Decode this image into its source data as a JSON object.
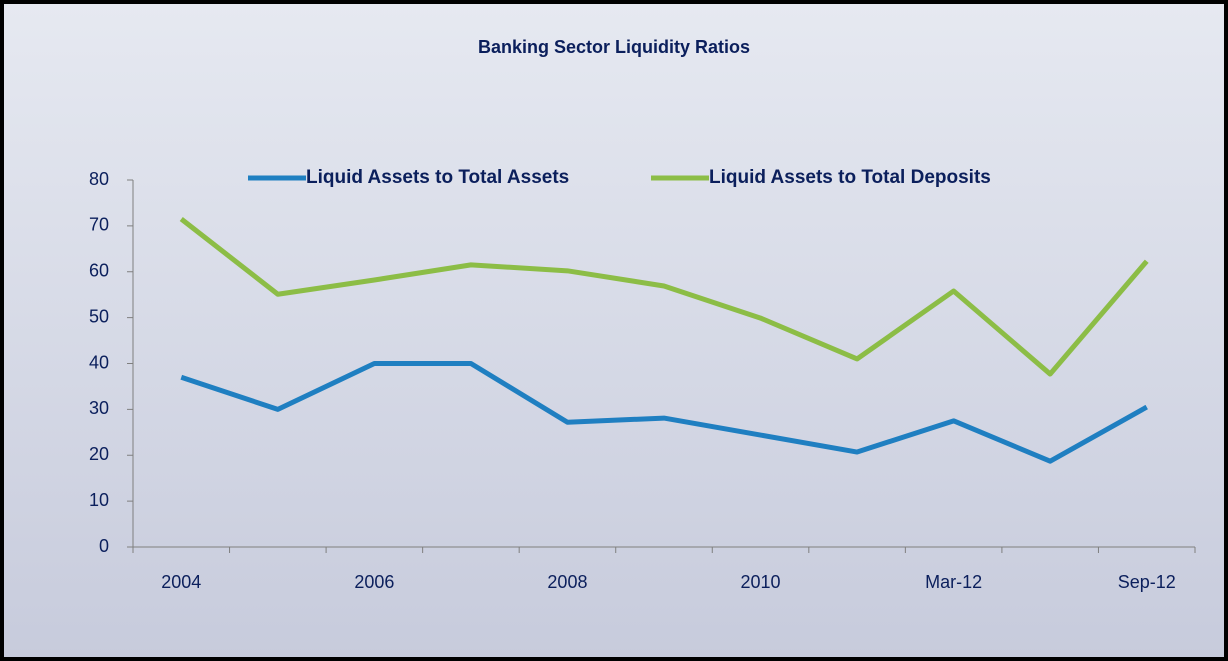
{
  "chart_data": {
    "type": "line",
    "title": "Banking Sector Liquidity Ratios",
    "categories": [
      "2004",
      null,
      "2006",
      null,
      "2008",
      null,
      "2010",
      null,
      "Mar-12",
      null,
      "Sep-12"
    ],
    "series": [
      {
        "name": "Liquid Assets to Total Assets",
        "color": "#1f7fc1",
        "values": [
          37,
          30,
          40,
          40,
          27.2,
          28.1,
          24.4,
          20.7,
          27.5,
          18.7,
          30.5
        ]
      },
      {
        "name": "Liquid Assets to Total Deposits",
        "color": "#8cbd46",
        "values": [
          71.5,
          55.1,
          58.2,
          61.5,
          60.2,
          56.9,
          49.9,
          41,
          55.8,
          37.7,
          62.3
        ]
      }
    ],
    "ylim": [
      0,
      80
    ],
    "yticks": [
      0,
      10,
      20,
      30,
      40,
      50,
      60,
      70,
      80
    ],
    "legend": "top"
  }
}
